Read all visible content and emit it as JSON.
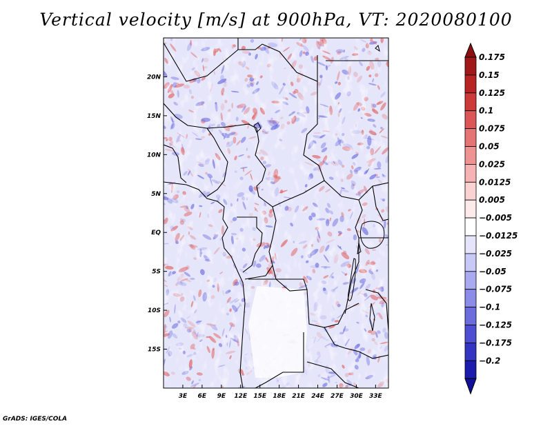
{
  "title": "Vertical velocity [m/s] at 900hPa, VT: 2020080100",
  "footer": "GrADS: IGES/COLA",
  "map": {
    "lon_range": [
      0,
      35
    ],
    "lat_range": [
      -20,
      25
    ],
    "lat_ticks": [
      {
        "lat": 20,
        "label": "20N"
      },
      {
        "lat": 15,
        "label": "15N"
      },
      {
        "lat": 10,
        "label": "10N"
      },
      {
        "lat": 5,
        "label": "5N"
      },
      {
        "lat": 0,
        "label": "EQ"
      },
      {
        "lat": -5,
        "label": "5S"
      },
      {
        "lat": -10,
        "label": "10S"
      },
      {
        "lat": -15,
        "label": "15S"
      }
    ],
    "lon_ticks": [
      {
        "lon": 3,
        "label": "3E"
      },
      {
        "lon": 6,
        "label": "6E"
      },
      {
        "lon": 9,
        "label": "9E"
      },
      {
        "lon": 12,
        "label": "12E"
      },
      {
        "lon": 15,
        "label": "15E"
      },
      {
        "lon": 18,
        "label": "18E"
      },
      {
        "lon": 21,
        "label": "21E"
      },
      {
        "lon": 24,
        "label": "24E"
      },
      {
        "lon": 27,
        "label": "27E"
      },
      {
        "lon": 30,
        "label": "30E"
      },
      {
        "lon": 33,
        "label": "33E"
      }
    ]
  },
  "colorbar": {
    "levels": [
      {
        "label": "0.175",
        "color": "#a01818"
      },
      {
        "label": "0.15",
        "color": "#b82424"
      },
      {
        "label": "0.125",
        "color": "#cc3a3a"
      },
      {
        "label": "0.1",
        "color": "#dc5656"
      },
      {
        "label": "0.075",
        "color": "#e67474"
      },
      {
        "label": "0.05",
        "color": "#ef9292"
      },
      {
        "label": "0.025",
        "color": "#f6b3b3"
      },
      {
        "label": "0.0125",
        "color": "#fbd2d2"
      },
      {
        "label": "0.005",
        "color": "#fdeaea"
      },
      {
        "label": "−0.005",
        "color": "#ffffff"
      },
      {
        "label": "−0.0125",
        "color": "#e4e4fb"
      },
      {
        "label": "−0.025",
        "color": "#c9c9f7"
      },
      {
        "label": "−0.05",
        "color": "#aaaaf0"
      },
      {
        "label": "−0.075",
        "color": "#8b8be8"
      },
      {
        "label": "−0.1",
        "color": "#6c6cde"
      },
      {
        "label": "−0.125",
        "color": "#4e4ed2"
      },
      {
        "label": "−0.175",
        "color": "#3434c2"
      },
      {
        "label": "−0.2",
        "color": "#1c1cac"
      }
    ],
    "top_color": "#8c1010",
    "bottom_color": "#101098"
  },
  "colors": {
    "pos": "#e06464",
    "neg": "#6e6ee0",
    "border": "#000000"
  }
}
